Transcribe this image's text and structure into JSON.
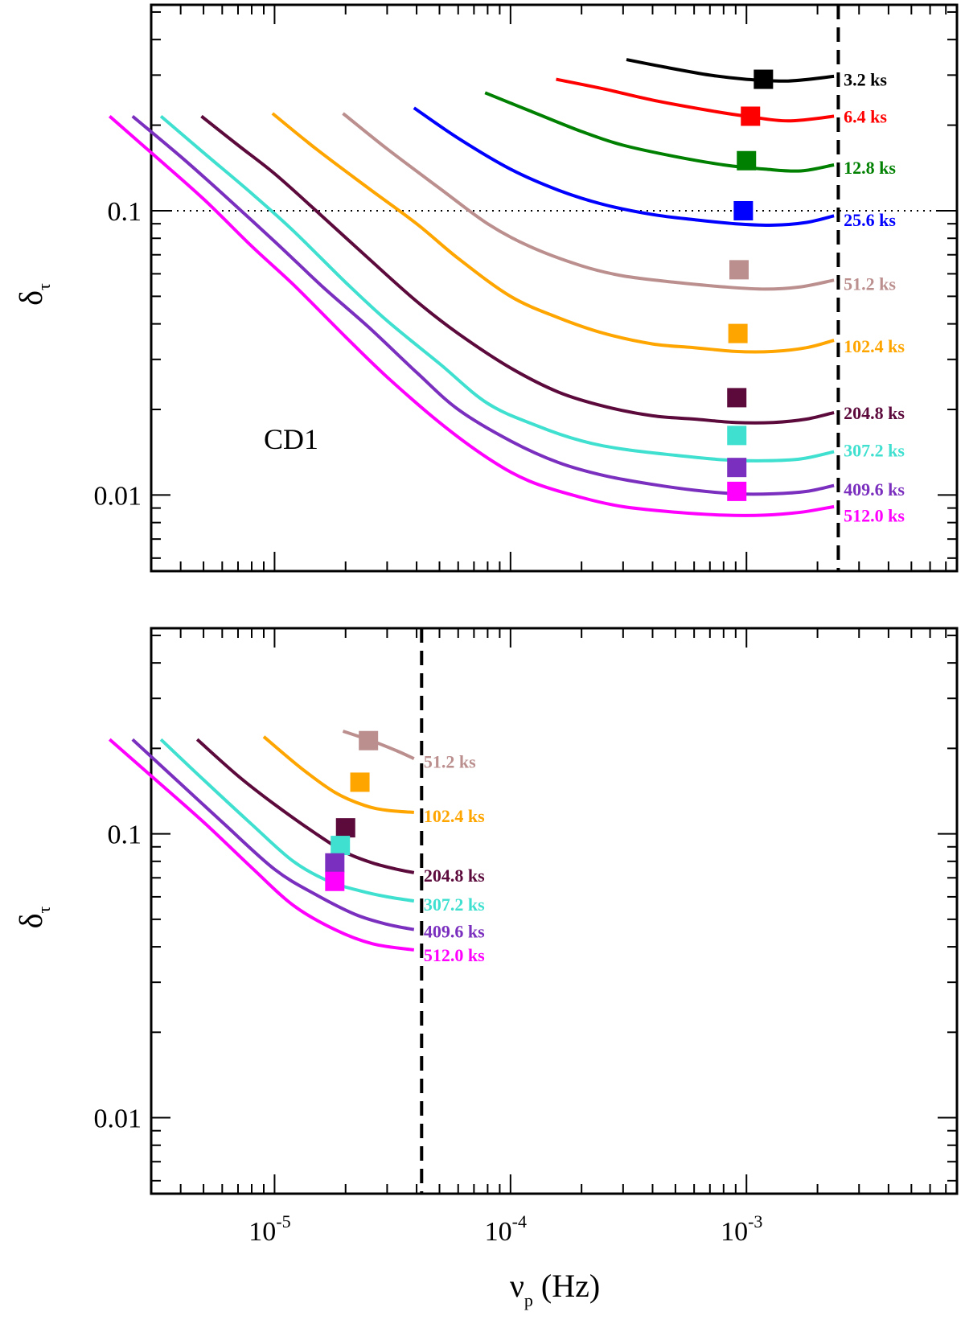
{
  "chart_data": {
    "type": "line",
    "x_axis": {
      "label_main": "ν",
      "label_sub": "p",
      "label_unit": " (Hz)",
      "scale": "log",
      "range": [
        3e-06,
        0.0078
      ],
      "tick_labels": [
        {
          "value": 1e-05,
          "base": "10",
          "exp": "-5"
        },
        {
          "value": 0.0001,
          "base": "10",
          "exp": "-4"
        },
        {
          "value": 0.001,
          "base": "10",
          "exp": "-3"
        }
      ]
    },
    "panels": [
      {
        "id": "top",
        "ylabel_main": "δ",
        "ylabel_sub": "τ",
        "yscale": "log",
        "ylim": [
          0.0054,
          0.53
        ],
        "ytick_labels": [
          {
            "value": 0.1,
            "label": "0.1"
          },
          {
            "value": 0.01,
            "label": "0.01"
          }
        ],
        "annotation": "CD1",
        "reference_hline": 0.1,
        "cutoff_vline": 0.00245,
        "series": [
          {
            "name": "3.2 ks",
            "color": "#000000",
            "x": [
              0.00031,
              0.00045,
              0.0007,
              0.001,
              0.0015,
              0.00235
            ],
            "y": [
              0.34,
              0.32,
              0.3,
              0.29,
              0.286,
              0.297
            ],
            "marker": {
              "x": 0.00118,
              "y": 0.29
            },
            "label_y": 0.29
          },
          {
            "name": "6.4 ks",
            "color": "#ff0000",
            "x": [
              0.000156,
              0.00025,
              0.0004,
              0.0007,
              0.001,
              0.0015,
              0.00235
            ],
            "y": [
              0.29,
              0.268,
              0.245,
              0.225,
              0.215,
              0.207,
              0.215
            ],
            "marker": {
              "x": 0.00104,
              "y": 0.215
            },
            "label_y": 0.215
          },
          {
            "name": "12.8 ks",
            "color": "#008000",
            "x": [
              7.8e-05,
              0.00012,
              0.0002,
              0.0003,
              0.0005,
              0.0008,
              0.0012,
              0.0017,
              0.00235
            ],
            "y": [
              0.26,
              0.225,
              0.19,
              0.17,
              0.155,
              0.145,
              0.14,
              0.138,
              0.145
            ],
            "marker": {
              "x": 0.001,
              "y": 0.15
            },
            "label_y": 0.142
          },
          {
            "name": "25.6 ks",
            "color": "#0000ff",
            "x": [
              3.9e-05,
              6e-05,
              0.0001,
              0.00016,
              0.00025,
              0.0004,
              0.0006,
              0.0009,
              0.0013,
              0.0018,
              0.00235
            ],
            "y": [
              0.23,
              0.18,
              0.14,
              0.118,
              0.105,
              0.097,
              0.093,
              0.09,
              0.089,
              0.091,
              0.096
            ],
            "marker": {
              "x": 0.00097,
              "y": 0.1
            },
            "label_y": 0.093
          },
          {
            "name": "51.2 ks",
            "color": "#bc8f8f",
            "x": [
              1.95e-05,
              3e-05,
              5e-05,
              8e-05,
              0.00012,
              0.0002,
              0.0003,
              0.0005,
              0.0008,
              0.0012,
              0.0017,
              0.00235
            ],
            "y": [
              0.22,
              0.165,
              0.12,
              0.09,
              0.075,
              0.064,
              0.059,
              0.056,
              0.054,
              0.053,
              0.054,
              0.057
            ],
            "marker": {
              "x": 0.00093,
              "y": 0.062
            },
            "label_y": 0.0555
          },
          {
            "name": "102.4 ks",
            "color": "#ffa500",
            "x": [
              9.8e-06,
              1.5e-05,
              2.5e-05,
              4e-05,
              6e-05,
              0.0001,
              0.00016,
              0.00025,
              0.0004,
              0.0006,
              0.0009,
              0.0013,
              0.0018,
              0.00235
            ],
            "y": [
              0.22,
              0.165,
              0.12,
              0.09,
              0.068,
              0.05,
              0.042,
              0.037,
              0.034,
              0.033,
              0.032,
              0.032,
              0.033,
              0.035
            ],
            "marker": {
              "x": 0.00092,
              "y": 0.037
            },
            "label_y": 0.0335
          },
          {
            "name": "204.8 ks",
            "color": "#5c0a3c",
            "x": [
              4.9e-06,
              7e-06,
              1e-05,
              1.5e-05,
              2.5e-05,
              4e-05,
              6e-05,
              0.0001,
              0.00016,
              0.00025,
              0.0004,
              0.0006,
              0.0009,
              0.0013,
              0.0018,
              0.00235
            ],
            "y": [
              0.215,
              0.17,
              0.135,
              0.1,
              0.068,
              0.048,
              0.037,
              0.028,
              0.023,
              0.0205,
              0.019,
              0.0185,
              0.018,
              0.018,
              0.0185,
              0.0195
            ],
            "marker": {
              "x": 0.00091,
              "y": 0.022
            },
            "label_y": 0.0195
          },
          {
            "name": "307.2 ks",
            "color": "#40e0d0",
            "x": [
              3.3e-06,
              5e-06,
              8e-06,
              1.2e-05,
              2e-05,
              3e-05,
              5e-05,
              8e-05,
              0.00013,
              0.0002,
              0.0003,
              0.0005,
              0.0008,
              0.0012,
              0.0017,
              0.00235
            ],
            "y": [
              0.215,
              0.16,
              0.115,
              0.085,
              0.056,
              0.041,
              0.029,
              0.021,
              0.0175,
              0.0155,
              0.0145,
              0.0138,
              0.0133,
              0.0132,
              0.0134,
              0.0142
            ],
            "marker": {
              "x": 0.00091,
              "y": 0.0162
            },
            "label_y": 0.0144
          },
          {
            "name": "409.6 ks",
            "color": "#7b2fbe",
            "x": [
              2.5e-06,
              4e-06,
              6e-06,
              1e-05,
              1.6e-05,
              2.5e-05,
              4e-05,
              6e-05,
              0.0001,
              0.00016,
              0.00025,
              0.0004,
              0.0006,
              0.0009,
              0.0013,
              0.0018,
              0.00235
            ],
            "y": [
              0.215,
              0.155,
              0.115,
              0.078,
              0.054,
              0.039,
              0.027,
              0.02,
              0.0155,
              0.013,
              0.0117,
              0.0109,
              0.0104,
              0.0101,
              0.0101,
              0.0103,
              0.0108
            ],
            "marker": {
              "x": 0.00091,
              "y": 0.0125
            },
            "label_y": 0.0105
          },
          {
            "name": "512.0 ks",
            "color": "#ff00ff",
            "x": [
              2e-06,
              3e-06,
              5e-06,
              8e-06,
              1.2e-05,
              2e-05,
              3e-05,
              5e-05,
              8e-05,
              0.00012,
              0.0002,
              0.0003,
              0.0005,
              0.0008,
              0.0012,
              0.0017,
              0.00235
            ],
            "y": [
              0.215,
              0.16,
              0.11,
              0.075,
              0.055,
              0.036,
              0.026,
              0.018,
              0.0135,
              0.0112,
              0.0098,
              0.0091,
              0.0087,
              0.0085,
              0.0085,
              0.0087,
              0.0091
            ],
            "marker": {
              "x": 0.00091,
              "y": 0.0103
            },
            "label_y": 0.0085
          }
        ]
      },
      {
        "id": "bottom",
        "ylabel_main": "δ",
        "ylabel_sub": "τ",
        "yscale": "log",
        "ylim": [
          0.0054,
          0.53
        ],
        "ytick_labels": [
          {
            "value": 0.1,
            "label": "0.1"
          },
          {
            "value": 0.01,
            "label": "0.01"
          }
        ],
        "cutoff_vline": 4.2e-05,
        "series": [
          {
            "name": "51.2 ks",
            "color": "#bc8f8f",
            "x": [
              1.95e-05,
              2.6e-05,
              3.3e-05,
              3.9e-05
            ],
            "y": [
              0.23,
              0.212,
              0.196,
              0.184
            ],
            "marker": {
              "x": 2.5e-05,
              "y": 0.213
            },
            "label_y": 0.18
          },
          {
            "name": "102.4 ks",
            "color": "#ffa500",
            "x": [
              9e-06,
              1.3e-05,
              1.8e-05,
              2.4e-05,
              3e-05,
              3.9e-05
            ],
            "y": [
              0.22,
              0.17,
              0.14,
              0.126,
              0.121,
              0.119
            ],
            "marker": {
              "x": 2.3e-05,
              "y": 0.152
            },
            "label_y": 0.116
          },
          {
            "name": "204.8 ks",
            "color": "#5c0a3c",
            "x": [
              4.7e-06,
              7e-06,
              1e-05,
              1.5e-05,
              2e-05,
              2.6e-05,
              3.3e-05,
              3.9e-05
            ],
            "y": [
              0.215,
              0.16,
              0.127,
              0.1,
              0.086,
              0.079,
              0.075,
              0.073
            ],
            "marker": {
              "x": 2e-05,
              "y": 0.105
            },
            "label_y": 0.0715
          },
          {
            "name": "307.2 ks",
            "color": "#40e0d0",
            "x": [
              3.3e-06,
              5e-06,
              8e-06,
              1.2e-05,
              1.7e-05,
              2.3e-05,
              3e-05,
              3.9e-05
            ],
            "y": [
              0.215,
              0.155,
              0.108,
              0.08,
              0.068,
              0.063,
              0.06,
              0.058
            ],
            "marker": {
              "x": 1.9e-05,
              "y": 0.091
            },
            "label_y": 0.0565
          },
          {
            "name": "409.6 ks",
            "color": "#7b2fbe",
            "x": [
              2.5e-06,
              4e-06,
              6e-06,
              1e-05,
              1.5e-05,
              2.2e-05,
              3e-05,
              3.9e-05
            ],
            "y": [
              0.215,
              0.15,
              0.11,
              0.075,
              0.061,
              0.052,
              0.048,
              0.046
            ],
            "marker": {
              "x": 1.8e-05,
              "y": 0.079
            },
            "label_y": 0.0455
          },
          {
            "name": "512.0 ks",
            "color": "#ff00ff",
            "x": [
              2e-06,
              3e-06,
              5e-06,
              8e-06,
              1.2e-05,
              1.8e-05,
              2.6e-05,
              3.9e-05
            ],
            "y": [
              0.215,
              0.16,
              0.11,
              0.076,
              0.056,
              0.046,
              0.041,
              0.039
            ],
            "marker": {
              "x": 1.8e-05,
              "y": 0.068
            },
            "label_y": 0.0375
          }
        ]
      }
    ]
  }
}
